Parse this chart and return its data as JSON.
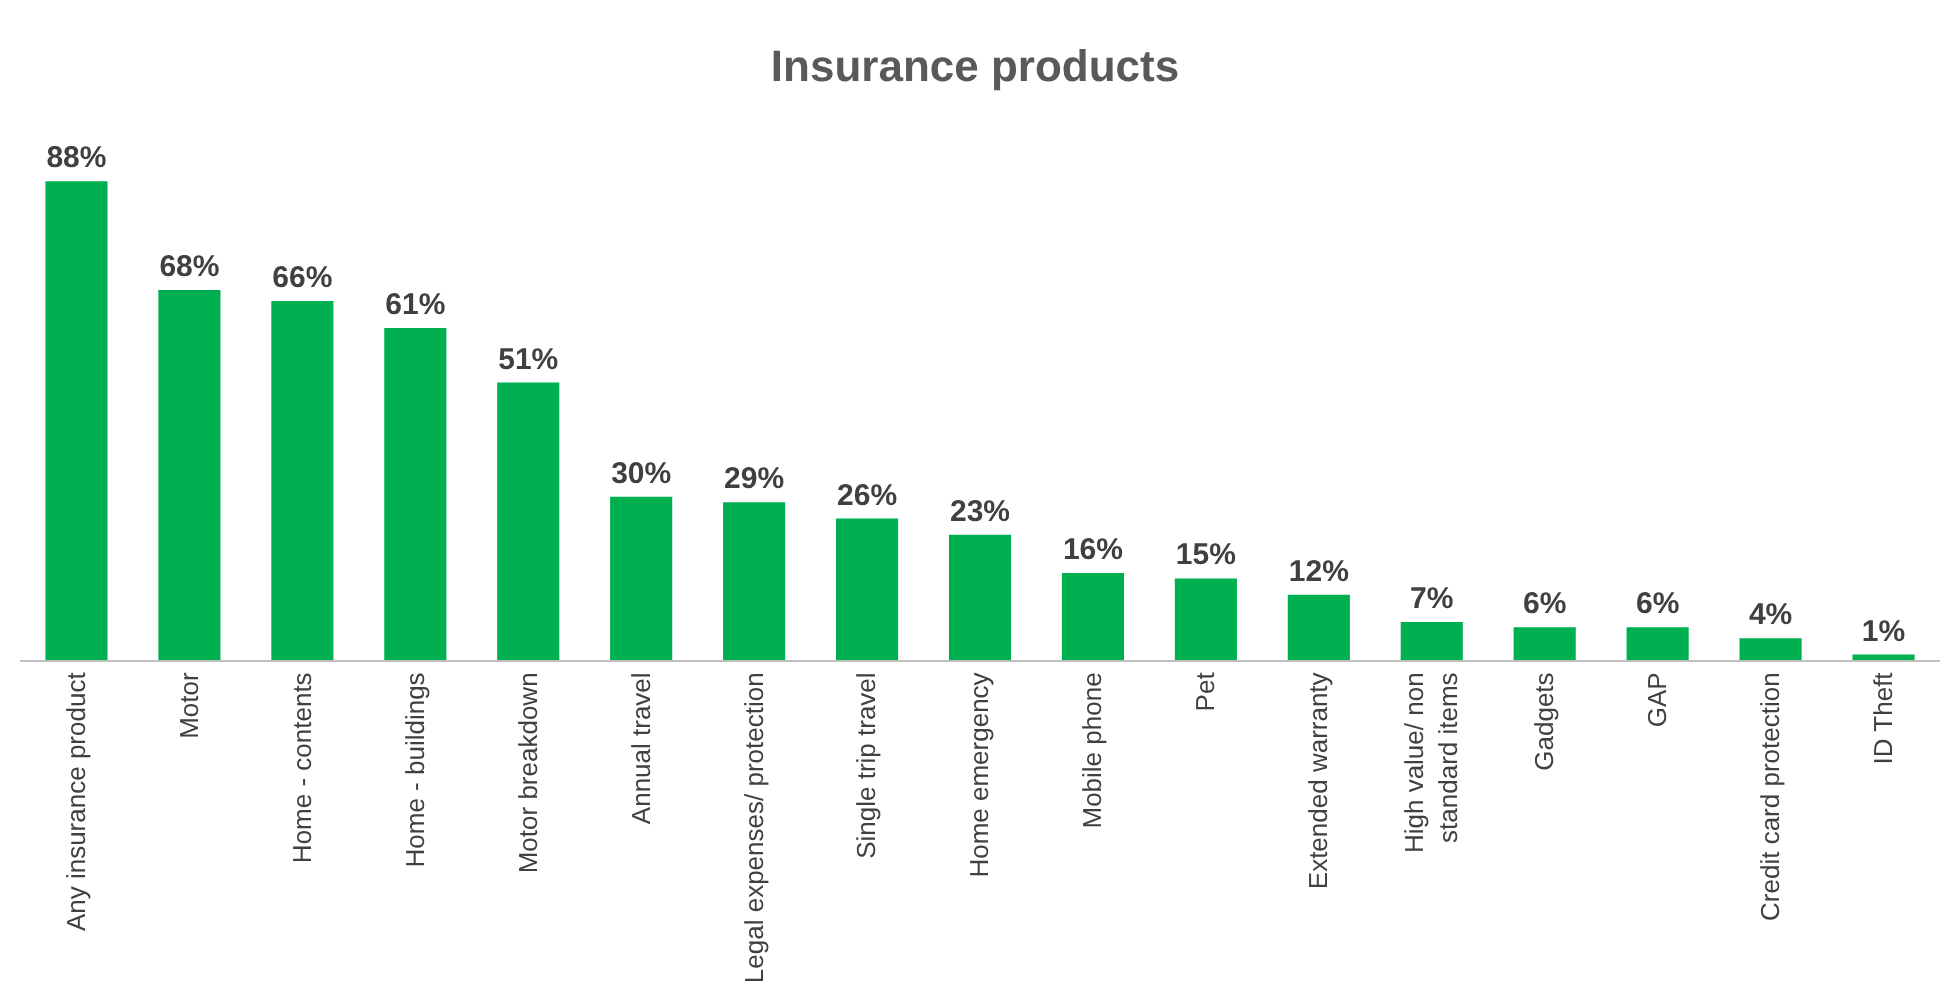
{
  "chart_data": {
    "type": "bar",
    "title": "Insurance products",
    "categories": [
      "Any insurance product",
      "Motor",
      "Home - contents",
      "Home - buildings",
      "Motor breakdown",
      "Annual travel",
      "Legal expenses/ protection",
      "Single trip travel",
      "Home emergency",
      "Mobile phone",
      "Pet",
      "Extended warranty",
      "High value/ non standard items",
      "Gadgets",
      "GAP",
      "Credit card protection",
      "ID Theft"
    ],
    "values": [
      88,
      68,
      66,
      61,
      51,
      30,
      29,
      26,
      23,
      16,
      15,
      12,
      7,
      6,
      6,
      4,
      1
    ],
    "value_labels": [
      "88%",
      "68%",
      "66%",
      "61%",
      "51%",
      "30%",
      "29%",
      "26%",
      "23%",
      "16%",
      "15%",
      "12%",
      "7%",
      "6%",
      "6%",
      "4%",
      "1%"
    ],
    "color": "#00b050",
    "grid": false,
    "legend": false
  }
}
